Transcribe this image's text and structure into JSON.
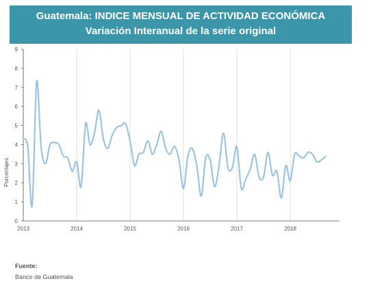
{
  "header": {
    "title": "Guatemala: INDICE MENSUAL DE ACTIVIDAD ECONÓMICA",
    "subtitle": "Variación Interanual de la serie original"
  },
  "footer": {
    "source_label": "Fuente:",
    "source_value": "Banco de Guatemala"
  },
  "colors": {
    "banner": "#3a96a8",
    "line": "#9cc3e0",
    "grid": "#dddddd",
    "axis": "#555555"
  },
  "chart_data": {
    "type": "line",
    "title": "Guatemala: INDICE MENSUAL DE ACTIVIDAD ECONÓMICA",
    "subtitle": "Variación Interanual de la serie original",
    "xlabel": "",
    "ylabel": "Porcentajes",
    "ylim": [
      0,
      9
    ],
    "yticks": [
      0,
      1,
      2,
      3,
      4,
      5,
      6,
      7,
      8,
      9
    ],
    "xticks": [
      "2013",
      "2014",
      "2015",
      "2016",
      "2017",
      "2018"
    ],
    "x_start": "2013-01",
    "frequency": "monthly",
    "grid": "vertical",
    "series": [
      {
        "values": [
          4.3,
          3.9,
          0.8,
          7.3,
          3.9,
          3.0,
          4.0,
          4.1,
          4.0,
          3.4,
          3.3,
          2.6,
          3.1,
          1.8,
          5.1,
          4.0,
          4.6,
          5.8,
          4.3,
          3.8,
          4.5,
          4.9,
          5.0,
          5.1,
          4.2,
          2.9,
          3.5,
          3.6,
          4.2,
          3.5,
          4.0,
          4.7,
          3.8,
          3.5,
          3.9,
          3.2,
          1.7,
          3.4,
          3.8,
          2.9,
          1.3,
          3.3,
          3.2,
          1.8,
          2.9,
          4.6,
          2.8,
          2.8,
          3.9,
          1.7,
          2.2,
          2.7,
          3.5,
          2.3,
          2.3,
          3.6,
          2.4,
          2.6,
          1.2,
          2.9,
          2.1,
          3.5,
          3.4,
          3.3,
          3.6,
          3.5,
          3.1,
          3.2,
          3.4
        ]
      }
    ]
  }
}
